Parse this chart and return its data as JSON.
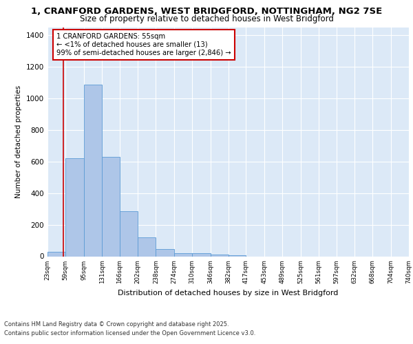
{
  "title_line1": "1, CRANFORD GARDENS, WEST BRIDGFORD, NOTTINGHAM, NG2 7SE",
  "title_line2": "Size of property relative to detached houses in West Bridgford",
  "xlabel": "Distribution of detached houses by size in West Bridgford",
  "ylabel": "Number of detached properties",
  "bins": [
    23,
    59,
    95,
    131,
    166,
    202,
    238,
    274,
    310,
    346,
    382,
    417,
    453,
    489,
    525,
    561,
    597,
    632,
    668,
    704,
    740
  ],
  "values": [
    30,
    620,
    1090,
    630,
    285,
    120,
    45,
    20,
    20,
    10,
    5,
    0,
    0,
    0,
    0,
    0,
    0,
    0,
    0,
    0
  ],
  "bar_color": "#aec6e8",
  "bar_edge_color": "#5b9bd5",
  "red_line_x": 55,
  "annotation_title": "1 CRANFORD GARDENS: 55sqm",
  "annotation_line2": "← <1% of detached houses are smaller (13)",
  "annotation_line3": "99% of semi-detached houses are larger (2,846) →",
  "annotation_box_color": "#ffffff",
  "annotation_box_edge": "#cc0000",
  "vline_color": "#cc0000",
  "ylim": [
    0,
    1450
  ],
  "yticks": [
    0,
    200,
    400,
    600,
    800,
    1000,
    1200,
    1400
  ],
  "fig_bg_color": "#ffffff",
  "plot_bg_color": "#dce9f7",
  "footer_line1": "Contains HM Land Registry data © Crown copyright and database right 2025.",
  "footer_line2": "Contains public sector information licensed under the Open Government Licence v3.0."
}
